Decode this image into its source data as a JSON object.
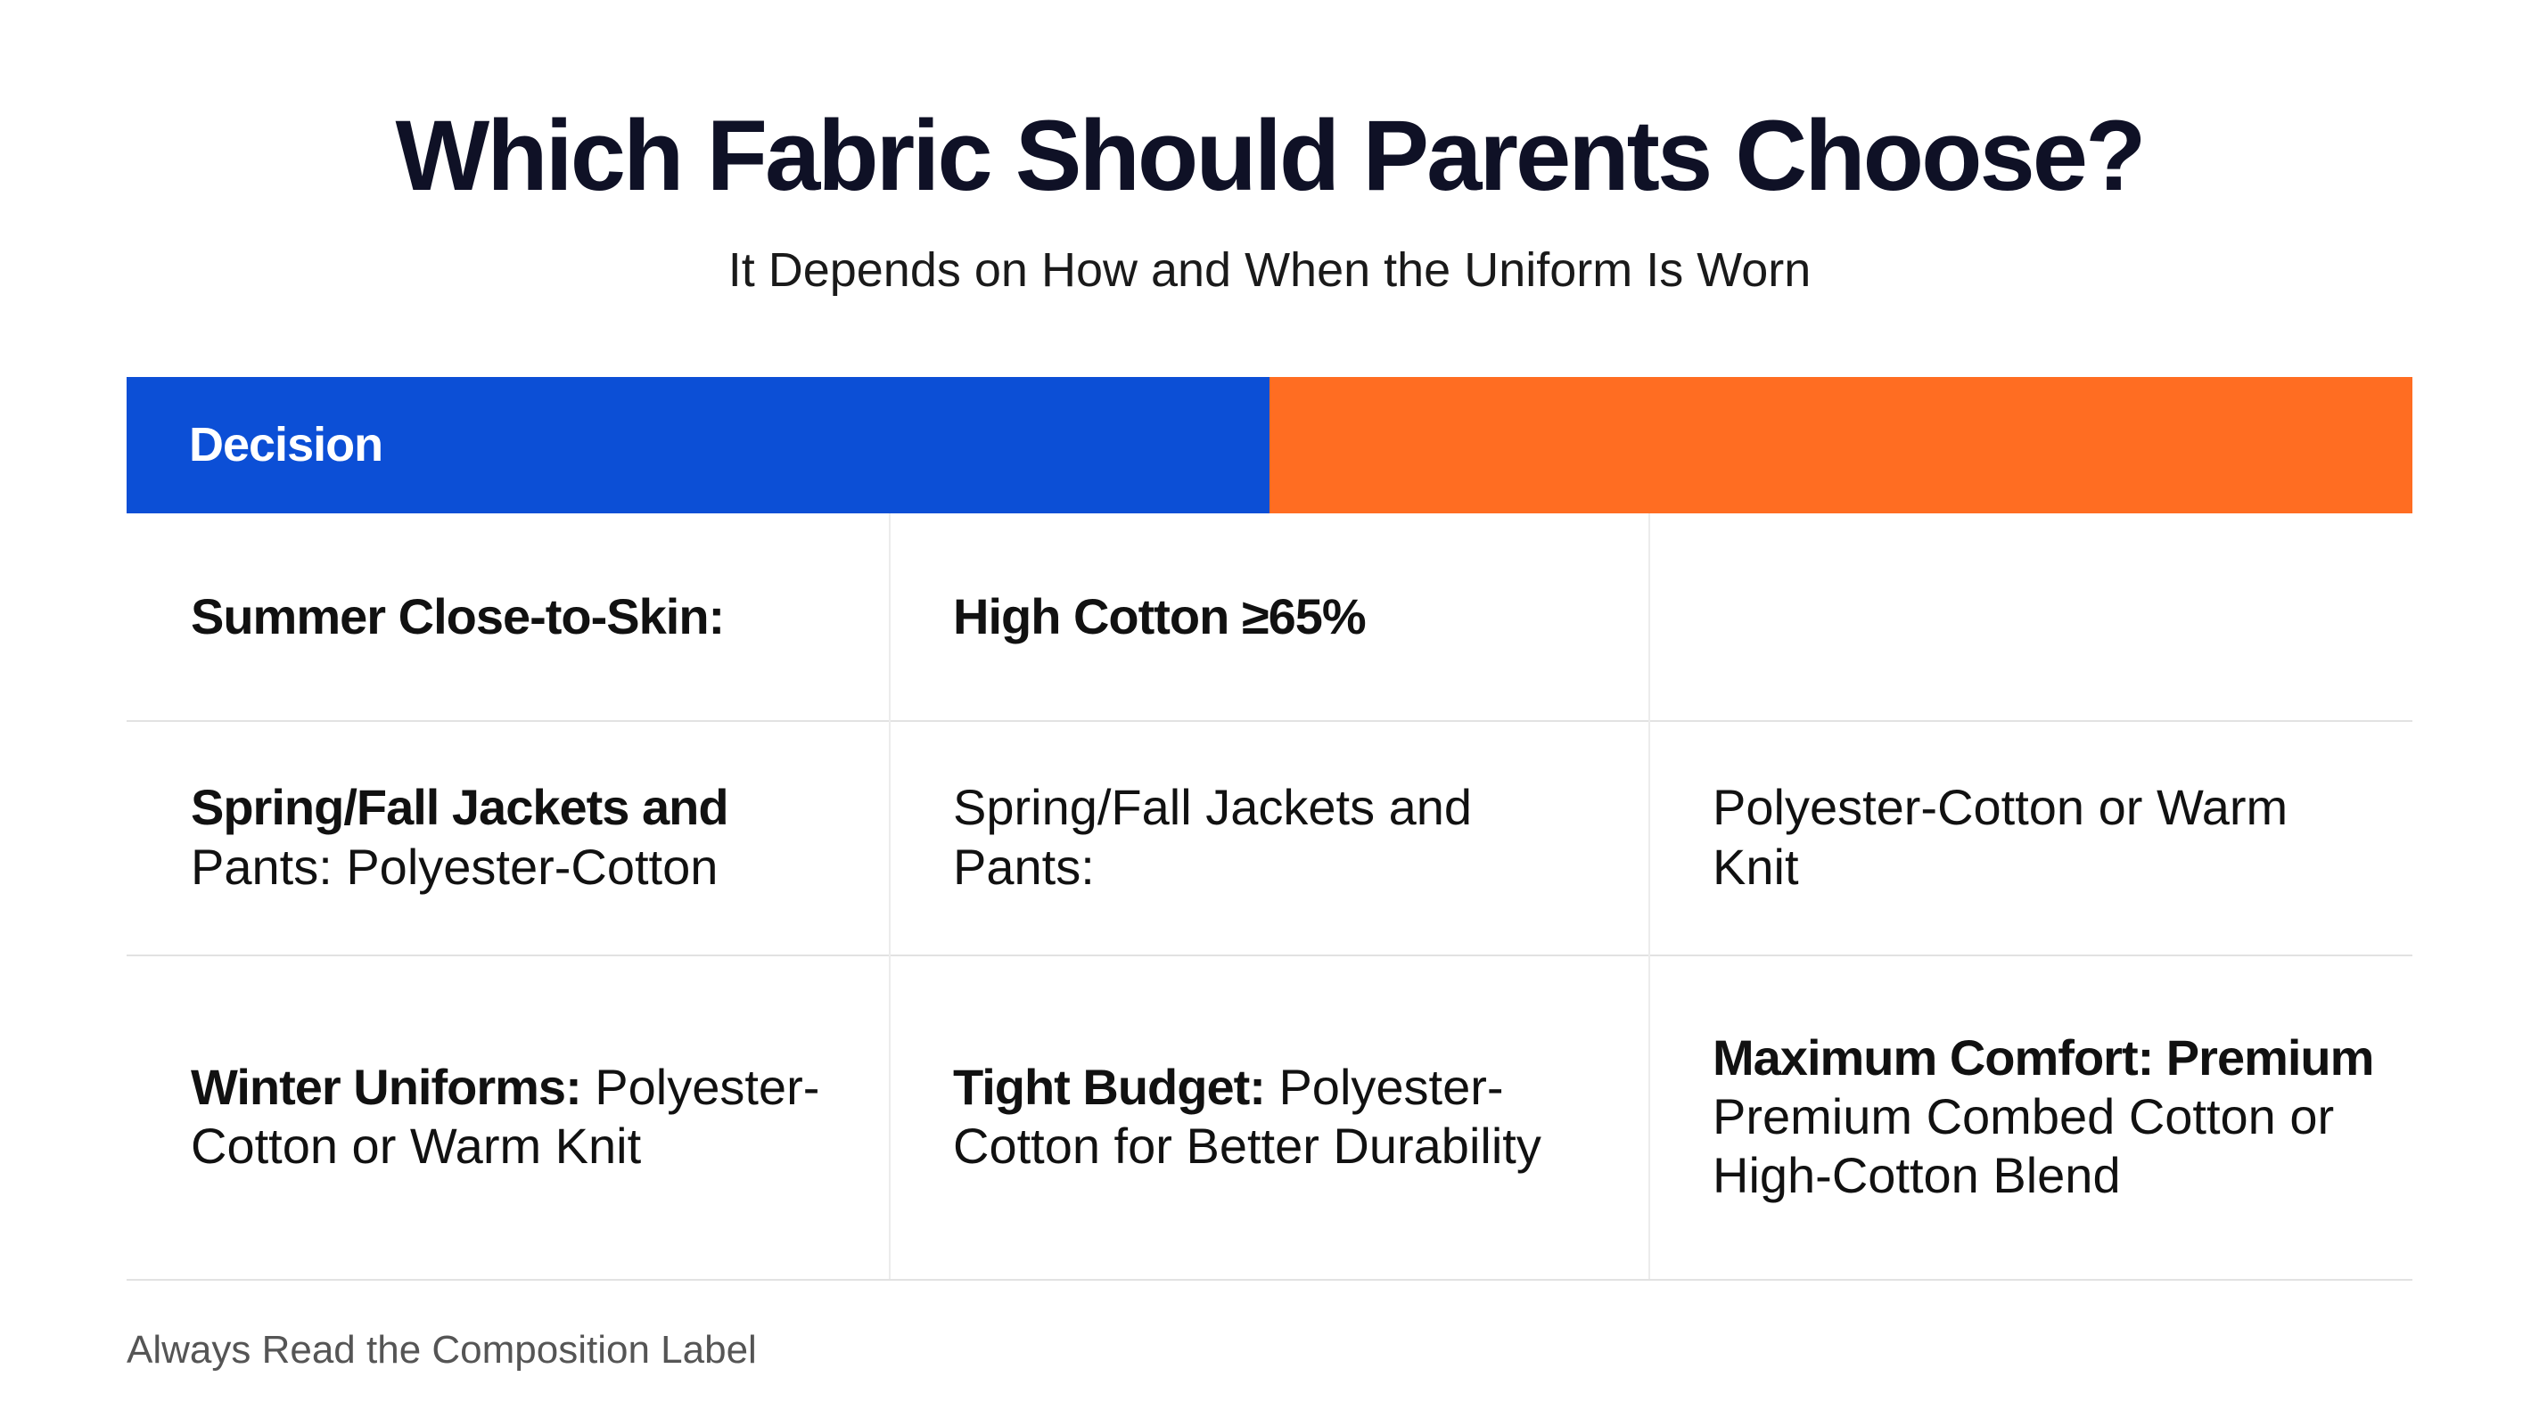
{
  "header": {
    "title": "Which Fabric Should Parents Choose?",
    "subtitle": "It Depends on How and When the Uniform Is Worn"
  },
  "table": {
    "header": "Decision",
    "rows": [
      [
        {
          "bold": "Summer Close-to-Skin:"
        },
        {
          "bold": "High Cotton ≥65%"
        },
        null
      ],
      [
        {
          "bold": "Spring/Fall Jackets and",
          "text": "Pants: Polyester-Cotton"
        },
        {
          "text": "Spring/Fall Jackets and Pants:"
        },
        {
          "text": "Polyester-Cotton or Warm Knit"
        }
      ],
      [
        {
          "bold": "Winter Uniforms:",
          "text": "Polyester-Cotton or Warm Knit"
        },
        {
          "bold": "Tight Budget:",
          "text": "Polyester-Cotton for Better Durability"
        },
        {
          "bold": "Maximum Comfort: Premium",
          "text": "Premium Combed Cotton or High-Cotton Blend"
        }
      ]
    ]
  },
  "footer": "Always Read the Composition Label"
}
